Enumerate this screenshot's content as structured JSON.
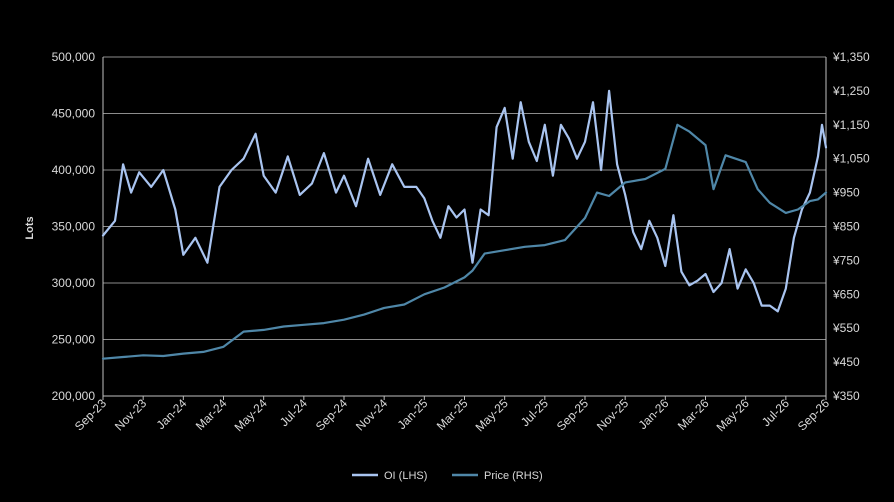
{
  "chart_data": {
    "type": "line",
    "title": "",
    "xlabel": "",
    "ylabel": "Lots",
    "y2label": "",
    "ylim": [
      200000,
      500000
    ],
    "y2lim": [
      350,
      1350
    ],
    "grid": true,
    "legend": "bottom-center",
    "yticks": [
      "500,000",
      "450,000",
      "400,000",
      "350,000",
      "300,000",
      "250,000",
      "200,000"
    ],
    "y2ticks": [
      "¥1,350",
      "¥1,250",
      "¥1,150",
      "¥1,050",
      "¥950",
      "¥850",
      "¥750",
      "¥650",
      "¥550",
      "¥450",
      "¥350"
    ],
    "xticks": [
      "Sep-23",
      "Nov-23",
      "Jan-24",
      "Mar-24",
      "May-24",
      "Jul-24",
      "Sep-24",
      "Nov-24",
      "Jan-25",
      "Mar-25",
      "May-25",
      "Jul-25",
      "Sep-25",
      "Nov-25",
      "Jan-26",
      "Mar-26",
      "May-26",
      "Jul-26",
      "Sep-26"
    ],
    "series": [
      {
        "name": "OI (LHS)",
        "axis": "left",
        "color": "#a9c4f0",
        "x": [
          0,
          0.3,
          0.5,
          0.7,
          0.9,
          1.2,
          1.5,
          1.8,
          2.0,
          2.3,
          2.6,
          2.9,
          3.2,
          3.5,
          3.8,
          4.0,
          4.3,
          4.6,
          4.9,
          5.2,
          5.5,
          5.8,
          6.0,
          6.3,
          6.6,
          6.9,
          7.2,
          7.5,
          7.8,
          8.0,
          8.2,
          8.4,
          8.6,
          8.8,
          9.0,
          9.2,
          9.4,
          9.6,
          9.8,
          10.0,
          10.2,
          10.4,
          10.6,
          10.8,
          11.0,
          11.2,
          11.4,
          11.6,
          11.8,
          12.0,
          12.2,
          12.4,
          12.6,
          12.8,
          13.0,
          13.2,
          13.4,
          13.6,
          13.8,
          14.0,
          14.2,
          14.4,
          14.6,
          14.8,
          15.0,
          15.2,
          15.4,
          15.6,
          15.8,
          16.0,
          16.2,
          16.4,
          16.6,
          16.8,
          17.0,
          17.2,
          17.4,
          17.6,
          17.8,
          17.9,
          18.0
        ],
        "values": [
          342000,
          355000,
          405000,
          380000,
          398000,
          385000,
          400000,
          365000,
          325000,
          340000,
          318000,
          385000,
          400000,
          410000,
          432000,
          395000,
          380000,
          412000,
          378000,
          388000,
          415000,
          380000,
          395000,
          368000,
          410000,
          378000,
          405000,
          385000,
          385000,
          375000,
          355000,
          340000,
          368000,
          358000,
          365000,
          318000,
          365000,
          360000,
          438000,
          455000,
          410000,
          460000,
          425000,
          408000,
          440000,
          395000,
          440000,
          428000,
          410000,
          425000,
          460000,
          400000,
          470000,
          405000,
          378000,
          345000,
          330000,
          355000,
          340000,
          315000,
          360000,
          310000,
          298000,
          302000,
          308000,
          292000,
          300000,
          330000,
          295000,
          312000,
          300000,
          280000,
          280000,
          275000,
          295000,
          340000,
          365000,
          380000,
          412000,
          440000,
          420000
        ]
      },
      {
        "name": "Price (RHS)",
        "axis": "right",
        "color": "#4f87a8",
        "x": [
          0,
          0.5,
          1.0,
          1.5,
          2.0,
          2.5,
          3.0,
          3.5,
          4.0,
          4.5,
          5.0,
          5.5,
          6.0,
          6.5,
          7.0,
          7.5,
          8.0,
          8.5,
          9.0,
          9.2,
          9.5,
          10.0,
          10.5,
          11.0,
          11.5,
          12.0,
          12.3,
          12.6,
          13.0,
          13.5,
          14.0,
          14.3,
          14.6,
          15.0,
          15.2,
          15.5,
          16.0,
          16.3,
          16.6,
          17.0,
          17.3,
          17.6,
          17.8,
          18.0
        ],
        "values": [
          460,
          465,
          470,
          468,
          475,
          480,
          495,
          540,
          545,
          555,
          560,
          565,
          575,
          590,
          610,
          620,
          650,
          670,
          700,
          720,
          770,
          780,
          790,
          795,
          810,
          875,
          950,
          940,
          980,
          990,
          1020,
          1150,
          1130,
          1090,
          960,
          1060,
          1040,
          960,
          920,
          890,
          900,
          925,
          930,
          950
        ]
      }
    ]
  }
}
